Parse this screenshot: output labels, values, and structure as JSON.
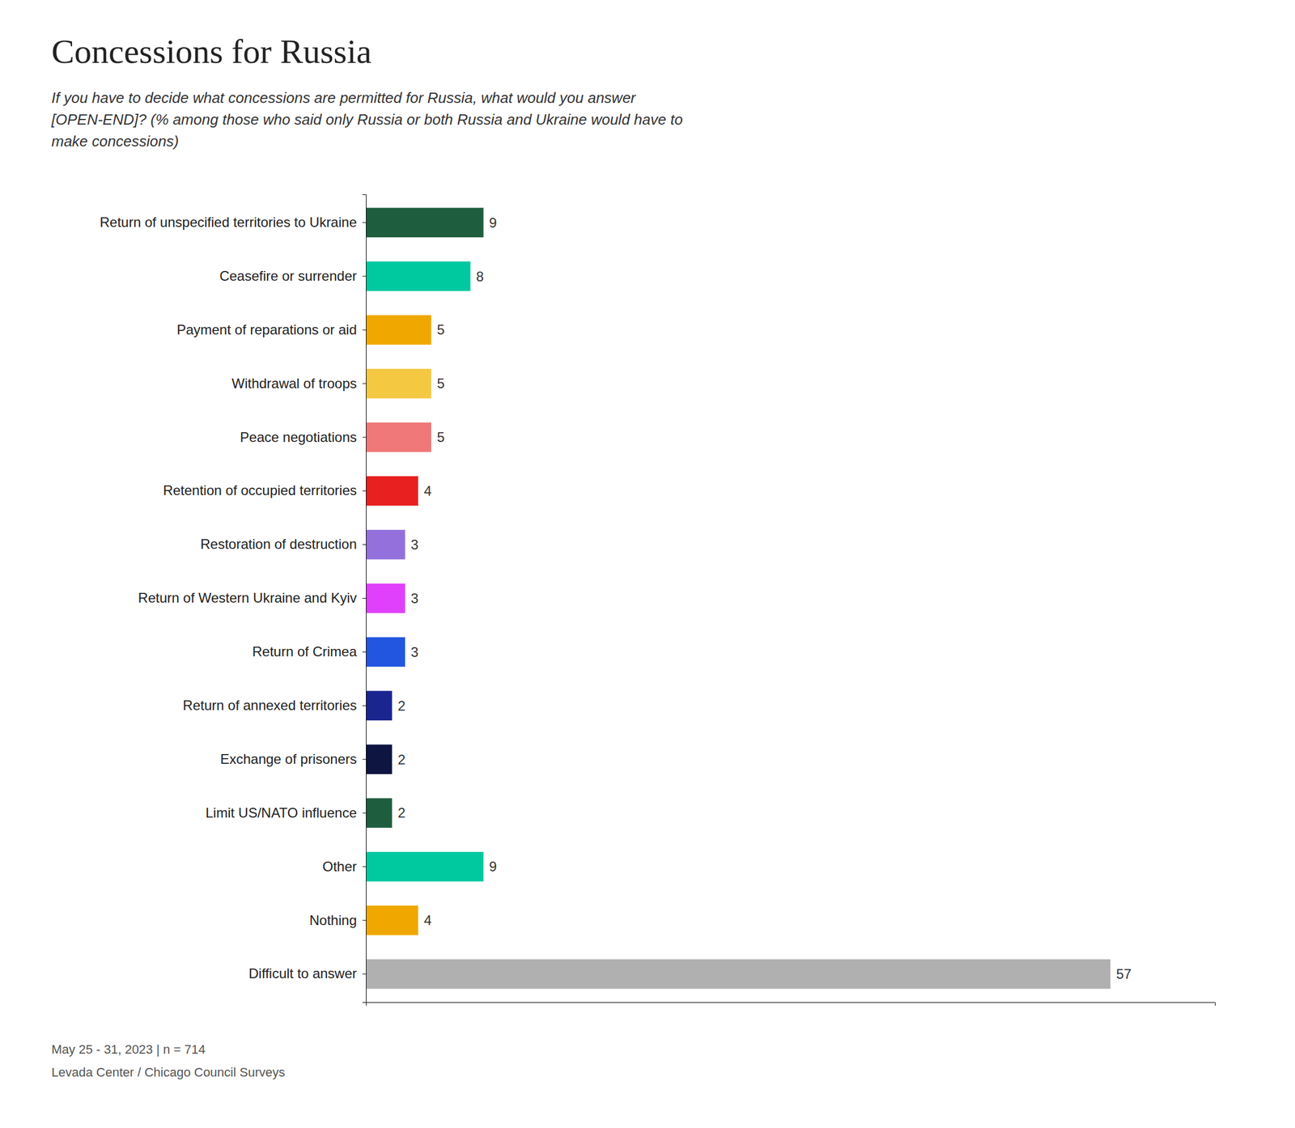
{
  "chart_data": {
    "type": "bar",
    "orientation": "horizontal",
    "title": "Concessions for Russia",
    "subtitle": "If you have to decide what concessions are permitted for Russia, what would you answer\n[OPEN-END]? (% among those who said only Russia or both Russia and Ukraine would have to\nmake concessions)",
    "annotations": [
      "May 25 - 31, 2023 | n = 714",
      "Levada Center / Chicago Council Surveys"
    ],
    "categories": [
      "Return of unspecified territories to Ukraine",
      "Ceasefire or surrender",
      "Payment of reparations or aid",
      "Withdrawal of troops",
      "Peace negotiations",
      "Retention of occupied territories",
      "Restoration of destruction",
      "Return of Western Ukraine and Kyiv",
      "Return of Crimea",
      "Return of annexed territories",
      "Exchange of prisoners",
      "Limit US/NATO influence",
      "Other",
      "Nothing",
      "Difficult to answer"
    ],
    "values": [
      9,
      8,
      5,
      5,
      5,
      4,
      3,
      3,
      3,
      2,
      2,
      2,
      9,
      4,
      57
    ],
    "colors": [
      "#1e5e3e",
      "#00c9a0",
      "#f0a800",
      "#f5c842",
      "#f07878",
      "#e82020",
      "#9370db",
      "#e040fb",
      "#2255e0",
      "#1a2590",
      "#0d1540",
      "#1e5e3e",
      "#00c9a0",
      "#f0a800",
      "#b0b0b0"
    ],
    "xlim": [
      0,
      65
    ],
    "data_labels": true,
    "tick_labels": "y",
    "grid": false
  }
}
